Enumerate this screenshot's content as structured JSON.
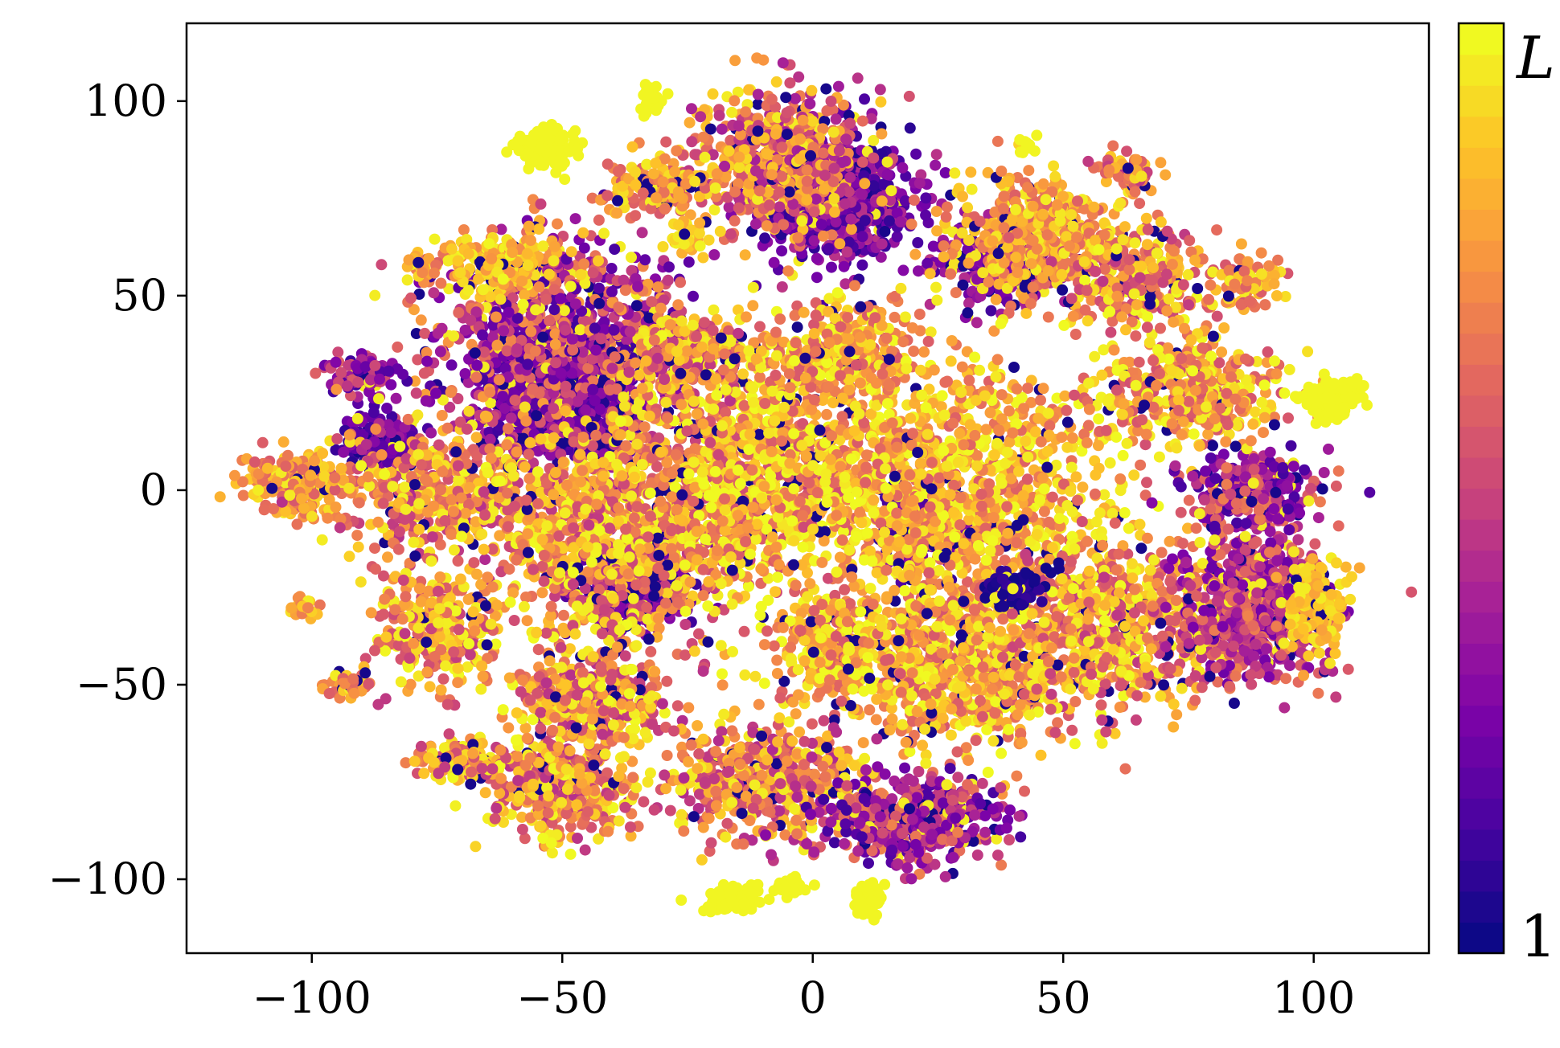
{
  "chart_data": {
    "type": "scatter",
    "title": "",
    "xlabel": "",
    "ylabel": "",
    "xlim": [
      -125,
      123
    ],
    "ylim": [
      -119,
      120
    ],
    "x_ticks": [
      -100,
      -50,
      0,
      50,
      100
    ],
    "y_ticks": [
      -100,
      -50,
      0,
      50,
      100
    ],
    "x_tick_labels": [
      "−100",
      "−50",
      "0",
      "50",
      "100"
    ],
    "y_tick_labels": [
      "−100",
      "−50",
      "0",
      "50",
      "100"
    ],
    "grid": false,
    "colorbar": {
      "colormap": "plasma",
      "title": "L",
      "min_label": "1",
      "bands": 30,
      "position": "right"
    },
    "clusters": [
      {
        "cx": -50,
        "cy": 25,
        "rx": 14,
        "ry": 14,
        "n": 900,
        "level": 0.22,
        "spread": 0.18
      },
      {
        "cx": -50,
        "cy": 40,
        "rx": 24,
        "ry": 22,
        "n": 900,
        "level": 0.45,
        "spread": 0.35
      },
      {
        "cx": -62,
        "cy": 58,
        "rx": 10,
        "ry": 8,
        "n": 200,
        "level": 0.85,
        "spread": 0.15
      },
      {
        "cx": -86,
        "cy": 12,
        "rx": 7,
        "ry": 7,
        "n": 180,
        "level": 0.2,
        "spread": 0.15
      },
      {
        "cx": -90,
        "cy": 30,
        "rx": 6,
        "ry": 5,
        "n": 100,
        "level": 0.35,
        "spread": 0.25
      },
      {
        "cx": -103,
        "cy": 2,
        "rx": 10,
        "ry": 8,
        "n": 260,
        "level": 0.75,
        "spread": 0.2
      },
      {
        "cx": -75,
        "cy": 0,
        "rx": 18,
        "ry": 15,
        "n": 400,
        "level": 0.7,
        "spread": 0.3
      },
      {
        "cx": 5,
        "cy": 75,
        "rx": 14,
        "ry": 14,
        "n": 700,
        "level": 0.25,
        "spread": 0.2
      },
      {
        "cx": -6,
        "cy": 85,
        "rx": 14,
        "ry": 17,
        "n": 600,
        "level": 0.65,
        "spread": 0.3
      },
      {
        "cx": -30,
        "cy": 78,
        "rx": 9,
        "ry": 7,
        "n": 180,
        "level": 0.75,
        "spread": 0.2
      },
      {
        "cx": 38,
        "cy": 60,
        "rx": 12,
        "ry": 10,
        "n": 300,
        "level": 0.3,
        "spread": 0.2
      },
      {
        "cx": 45,
        "cy": 65,
        "rx": 16,
        "ry": 14,
        "n": 400,
        "level": 0.78,
        "spread": 0.2
      },
      {
        "cx": 65,
        "cy": 55,
        "rx": 14,
        "ry": 12,
        "n": 300,
        "level": 0.75,
        "spread": 0.3
      },
      {
        "cx": 62,
        "cy": 82,
        "rx": 5,
        "ry": 5,
        "n": 60,
        "level": 0.7,
        "spread": 0.25
      },
      {
        "cx": 86,
        "cy": 53,
        "rx": 6,
        "ry": 6,
        "n": 90,
        "level": 0.75,
        "spread": 0.2
      },
      {
        "cx": -35,
        "cy": -25,
        "rx": 10,
        "ry": 10,
        "n": 300,
        "level": 0.2,
        "spread": 0.15
      },
      {
        "cx": -40,
        "cy": -10,
        "rx": 28,
        "ry": 26,
        "n": 1100,
        "level": 0.75,
        "spread": 0.3
      },
      {
        "cx": -10,
        "cy": 5,
        "rx": 22,
        "ry": 25,
        "n": 900,
        "level": 0.8,
        "spread": 0.3
      },
      {
        "cx": 22,
        "cy": -10,
        "rx": 8,
        "ry": 8,
        "n": 160,
        "level": 0.22,
        "spread": 0.15
      },
      {
        "cx": 28,
        "cy": 0,
        "rx": 30,
        "ry": 30,
        "n": 1200,
        "level": 0.82,
        "spread": 0.25
      },
      {
        "cx": 30,
        "cy": -45,
        "rx": 22,
        "ry": 20,
        "n": 800,
        "level": 0.8,
        "spread": 0.25
      },
      {
        "cx": 60,
        "cy": -35,
        "rx": 20,
        "ry": 20,
        "n": 600,
        "level": 0.75,
        "spread": 0.3
      },
      {
        "cx": 88,
        "cy": -30,
        "rx": 15,
        "ry": 18,
        "n": 700,
        "level": 0.45,
        "spread": 0.25
      },
      {
        "cx": 88,
        "cy": 0,
        "rx": 12,
        "ry": 10,
        "n": 300,
        "level": 0.4,
        "spread": 0.3
      },
      {
        "cx": 100,
        "cy": -30,
        "rx": 6,
        "ry": 10,
        "n": 150,
        "level": 0.88,
        "spread": 0.1
      },
      {
        "cx": 40,
        "cy": -25,
        "rx": 5,
        "ry": 5,
        "n": 70,
        "level": 0.05,
        "spread": 0.05
      },
      {
        "cx": -10,
        "cy": -75,
        "rx": 18,
        "ry": 14,
        "n": 500,
        "level": 0.7,
        "spread": 0.3
      },
      {
        "cx": 20,
        "cy": -85,
        "rx": 16,
        "ry": 10,
        "n": 500,
        "level": 0.4,
        "spread": 0.3
      },
      {
        "cx": -50,
        "cy": -78,
        "rx": 12,
        "ry": 12,
        "n": 350,
        "level": 0.72,
        "spread": 0.3
      },
      {
        "cx": -70,
        "cy": -70,
        "rx": 8,
        "ry": 5,
        "n": 150,
        "level": 0.75,
        "spread": 0.3
      },
      {
        "cx": -45,
        "cy": -55,
        "rx": 14,
        "ry": 14,
        "n": 400,
        "level": 0.72,
        "spread": 0.3
      },
      {
        "cx": -75,
        "cy": -35,
        "rx": 12,
        "ry": 14,
        "n": 300,
        "level": 0.75,
        "spread": 0.3
      },
      {
        "cx": -25,
        "cy": 35,
        "rx": 12,
        "ry": 12,
        "n": 250,
        "level": 0.72,
        "spread": 0.3
      },
      {
        "cx": 5,
        "cy": 35,
        "rx": 16,
        "ry": 12,
        "n": 350,
        "level": 0.8,
        "spread": 0.25
      },
      {
        "cx": 75,
        "cy": 25,
        "rx": 18,
        "ry": 12,
        "n": 400,
        "level": 0.78,
        "spread": 0.25
      },
      {
        "cx": 5,
        "cy": -40,
        "rx": 12,
        "ry": 12,
        "n": 250,
        "level": 0.8,
        "spread": 0.25
      },
      {
        "cx": -53,
        "cy": 88,
        "rx": 5,
        "ry": 4,
        "n": 120,
        "level": 0.99,
        "spread": 0.0
      },
      {
        "cx": -32,
        "cy": 100,
        "rx": 2,
        "ry": 4,
        "n": 30,
        "level": 0.99,
        "spread": 0.0
      },
      {
        "cx": 103,
        "cy": 23,
        "rx": 5,
        "ry": 5,
        "n": 130,
        "level": 0.99,
        "spread": 0.0
      },
      {
        "cx": -16,
        "cy": -105,
        "rx": 5,
        "ry": 3,
        "n": 110,
        "level": 0.99,
        "spread": 0.0
      },
      {
        "cx": 11,
        "cy": -105,
        "rx": 3,
        "ry": 4,
        "n": 60,
        "level": 0.99,
        "spread": 0.0
      },
      {
        "cx": -4,
        "cy": -102,
        "rx": 3,
        "ry": 2,
        "n": 20,
        "level": 0.99,
        "spread": 0.0
      },
      {
        "cx": 43,
        "cy": 89,
        "rx": 2,
        "ry": 2,
        "n": 10,
        "level": 0.99,
        "spread": 0.0
      },
      {
        "cx": -25,
        "cy": 65,
        "rx": 4,
        "ry": 4,
        "n": 40,
        "level": 0.9,
        "spread": 0.1
      },
      {
        "cx": -78,
        "cy": 58,
        "rx": 3,
        "ry": 3,
        "n": 30,
        "level": 0.75,
        "spread": 0.2
      },
      {
        "cx": -102,
        "cy": -31,
        "rx": 3,
        "ry": 3,
        "n": 25,
        "level": 0.8,
        "spread": 0.15
      },
      {
        "cx": -92,
        "cy": -50,
        "rx": 4,
        "ry": 4,
        "n": 50,
        "level": 0.75,
        "spread": 0.2
      }
    ]
  }
}
